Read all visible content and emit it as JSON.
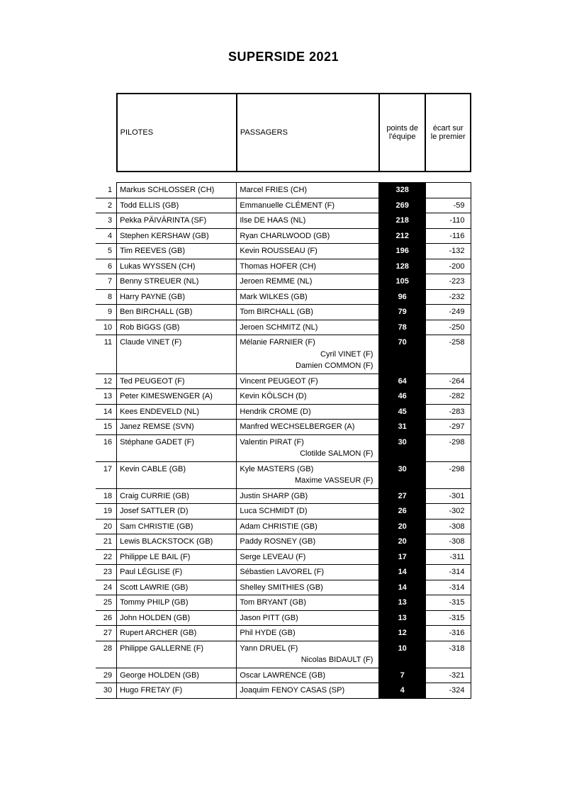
{
  "title": "SUPERSIDE 2021",
  "columns": {
    "pilotes": "PILOTES",
    "passagers": "PASSAGERS",
    "points": "points de l'équipe",
    "ecart": "écart sur le premier"
  },
  "colors": {
    "background": "#ffffff",
    "text": "#000000",
    "points_bg": "#000000",
    "points_fg": "#ffffff",
    "border": "#000000"
  },
  "font": {
    "family": "Comic Sans MS",
    "title_size_pt": 18,
    "body_size_pt": 11
  },
  "rows": [
    {
      "rank": 1,
      "pilot": "Markus SCHLOSSER (CH)",
      "passengers": [
        "Marcel FRIES (CH)"
      ],
      "points": "328",
      "gap": ""
    },
    {
      "rank": 2,
      "pilot": "Todd ELLIS (GB)",
      "passengers": [
        "Emmanuelle CLÉMENT (F)"
      ],
      "points": "269",
      "gap": "-59"
    },
    {
      "rank": 3,
      "pilot": "Pekka PÄIVÄRINTA (SF)",
      "passengers": [
        "Ilse DE HAAS (NL)"
      ],
      "points": "218",
      "gap": "-110"
    },
    {
      "rank": 4,
      "pilot": "Stephen KERSHAW (GB)",
      "passengers": [
        "Ryan CHARLWOOD (GB)"
      ],
      "points": "212",
      "gap": "-116"
    },
    {
      "rank": 5,
      "pilot": "Tim REEVES (GB)",
      "passengers": [
        "Kevin ROUSSEAU (F)"
      ],
      "points": "196",
      "gap": "-132"
    },
    {
      "rank": 6,
      "pilot": "Lukas WYSSEN (CH)",
      "passengers": [
        "Thomas HOFER (CH)"
      ],
      "points": "128",
      "gap": "-200"
    },
    {
      "rank": 7,
      "pilot": "Benny STREUER (NL)",
      "passengers": [
        "Jeroen REMME (NL)"
      ],
      "points": "105",
      "gap": "-223"
    },
    {
      "rank": 8,
      "pilot": "Harry PAYNE (GB)",
      "passengers": [
        "Mark WILKES (GB)"
      ],
      "points": "96",
      "gap": "-232"
    },
    {
      "rank": 9,
      "pilot": "Ben BIRCHALL (GB)",
      "passengers": [
        "Tom BIRCHALL (GB)"
      ],
      "points": "79",
      "gap": "-249"
    },
    {
      "rank": 10,
      "pilot": "Rob BIGGS (GB)",
      "passengers": [
        "Jeroen SCHMITZ (NL)"
      ],
      "points": "78",
      "gap": "-250"
    },
    {
      "rank": 11,
      "pilot": "Claude VINET (F)",
      "passengers": [
        "Mélanie FARNIER (F)",
        "Cyril VINET (F)",
        "Damien COMMON (F)"
      ],
      "points": "70",
      "gap": "-258"
    },
    {
      "rank": 12,
      "pilot": "Ted PEUGEOT (F)",
      "passengers": [
        "Vincent PEUGEOT (F)"
      ],
      "points": "64",
      "gap": "-264"
    },
    {
      "rank": 13,
      "pilot": "Peter KIMESWENGER (A)",
      "passengers": [
        "Kevin KÖLSCH (D)"
      ],
      "points": "46",
      "gap": "-282"
    },
    {
      "rank": 14,
      "pilot": "Kees ENDEVELD (NL)",
      "passengers": [
        "Hendrik CROME (D)"
      ],
      "points": "45",
      "gap": "-283"
    },
    {
      "rank": 15,
      "pilot": "Janez REMSE (SVN)",
      "passengers": [
        "Manfred WECHSELBERGER (A)"
      ],
      "points": "31",
      "gap": "-297"
    },
    {
      "rank": 16,
      "pilot": "Stéphane GADET (F)",
      "passengers": [
        "Valentin PIRAT (F)",
        "Clotilde SALMON (F)"
      ],
      "points": "30",
      "gap": "-298"
    },
    {
      "rank": 17,
      "pilot": "Kevin CABLE (GB)",
      "passengers": [
        "Kyle MASTERS (GB)",
        "Maxime VASSEUR (F)"
      ],
      "points": "30",
      "gap": "-298"
    },
    {
      "rank": 18,
      "pilot": "Craig CURRIE (GB)",
      "passengers": [
        "Justin SHARP (GB)"
      ],
      "points": "27",
      "gap": "-301"
    },
    {
      "rank": 19,
      "pilot": "Josef SATTLER (D)",
      "passengers": [
        "Luca SCHMIDT (D)"
      ],
      "points": "26",
      "gap": "-302"
    },
    {
      "rank": 20,
      "pilot": "Sam CHRISTIE (GB)",
      "passengers": [
        "Adam CHRISTIE (GB)"
      ],
      "points": "20",
      "gap": "-308"
    },
    {
      "rank": 21,
      "pilot": "Lewis BLACKSTOCK (GB)",
      "passengers": [
        "Paddy ROSNEY (GB)"
      ],
      "points": "20",
      "gap": "-308"
    },
    {
      "rank": 22,
      "pilot": "Philippe LE BAIL (F)",
      "passengers": [
        "Serge LEVEAU (F)"
      ],
      "points": "17",
      "gap": "-311"
    },
    {
      "rank": 23,
      "pilot": "Paul LÉGLISE (F)",
      "passengers": [
        "Sébastien LAVOREL (F)"
      ],
      "points": "14",
      "gap": "-314"
    },
    {
      "rank": 24,
      "pilot": "Scott LAWRIE (GB)",
      "passengers": [
        "Shelley SMITHIES (GB)"
      ],
      "points": "14",
      "gap": "-314"
    },
    {
      "rank": 25,
      "pilot": "Tommy PHILP (GB)",
      "passengers": [
        "Tom BRYANT (GB)"
      ],
      "points": "13",
      "gap": "-315"
    },
    {
      "rank": 26,
      "pilot": "John HOLDEN (GB)",
      "passengers": [
        "Jason PITT (GB)"
      ],
      "points": "13",
      "gap": "-315"
    },
    {
      "rank": 27,
      "pilot": "Rupert ARCHER (GB)",
      "passengers": [
        "Phil HYDE (GB)"
      ],
      "points": "12",
      "gap": "-316"
    },
    {
      "rank": 28,
      "pilot": "Philippe GALLERNE (F)",
      "passengers": [
        "Yann DRUEL (F)",
        "Nicolas BIDAULT (F)"
      ],
      "points": "10",
      "gap": "-318"
    },
    {
      "rank": 29,
      "pilot": "George HOLDEN (GB)",
      "passengers": [
        "Oscar LAWRENCE (GB)"
      ],
      "points": "7",
      "gap": "-321"
    },
    {
      "rank": 30,
      "pilot": "Hugo FRETAY (F)",
      "passengers": [
        "Joaquim FENOY CASAS (SP)"
      ],
      "points": "4",
      "gap": "-324"
    }
  ]
}
